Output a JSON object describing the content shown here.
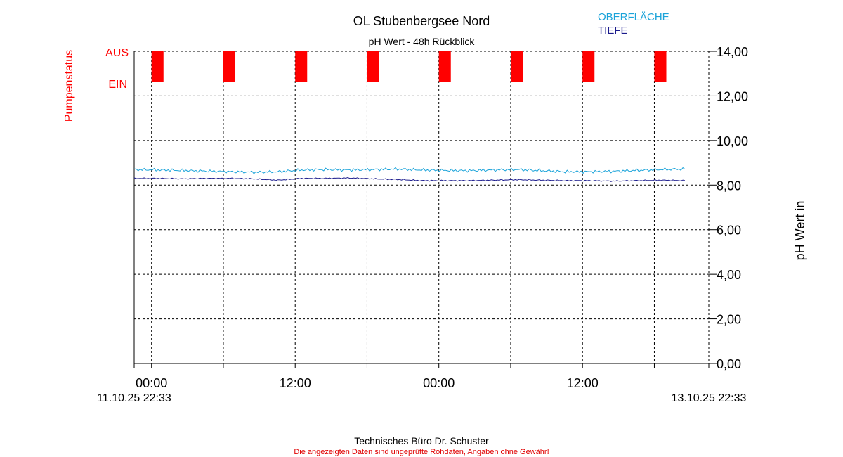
{
  "chart_data": {
    "type": "line",
    "title": "OL Stubenbergsee Nord",
    "subtitle": "pH Wert - 48h Rückblick",
    "ylabel_right": "pH Wert in",
    "ylabel_left": "Pumpenstatus",
    "ylim": [
      0,
      14
    ],
    "yticks": [
      "0,00",
      "2,00",
      "4,00",
      "6,00",
      "8,00",
      "10,00",
      "12,00",
      "14,00"
    ],
    "ytick_values": [
      0,
      2,
      4,
      6,
      8,
      10,
      12,
      14
    ],
    "grid": true,
    "xlim_hours": [
      0,
      48
    ],
    "xtick_labels": [
      {
        "label": "00:00",
        "hour": 1.45
      },
      {
        "label": "12:00",
        "hour": 13.45
      },
      {
        "label": "00:00",
        "hour": 25.45
      },
      {
        "label": "12:00",
        "hour": 37.45
      }
    ],
    "xtick_minor_hours": [
      7.45,
      19.45,
      31.45,
      43.45
    ],
    "x_start_label": "11.10.25 22:33",
    "x_end_label": "13.10.25 22:33",
    "legend_position": "top-right",
    "pump_status": {
      "labels": {
        "on": "EIN",
        "off": "AUS"
      },
      "color": "#ff0000",
      "on_intervals_hours": [
        [
          1.45,
          2.45
        ],
        [
          7.45,
          8.45
        ],
        [
          13.45,
          14.45
        ],
        [
          19.45,
          20.45
        ],
        [
          25.45,
          26.45
        ],
        [
          31.45,
          32.45
        ],
        [
          37.45,
          38.45
        ],
        [
          43.45,
          44.45
        ]
      ]
    },
    "series": [
      {
        "name": "OBERFLÄCHE",
        "color": "#1aa3d9",
        "x_hours": [
          0,
          2,
          4,
          6,
          8,
          10,
          12,
          14,
          16,
          18,
          20,
          22,
          24,
          26,
          28,
          30,
          32,
          34,
          36,
          38,
          40,
          42,
          44,
          46
        ],
        "values": [
          8.7,
          8.68,
          8.66,
          8.63,
          8.6,
          8.58,
          8.6,
          8.68,
          8.7,
          8.68,
          8.7,
          8.72,
          8.68,
          8.66,
          8.65,
          8.68,
          8.7,
          8.65,
          8.6,
          8.6,
          8.62,
          8.66,
          8.7,
          8.72
        ]
      },
      {
        "name": "TIEFE",
        "color": "#1a1a8c",
        "x_hours": [
          0,
          2,
          4,
          6,
          8,
          10,
          12,
          14,
          16,
          18,
          20,
          22,
          24,
          26,
          28,
          30,
          32,
          34,
          36,
          38,
          40,
          42,
          44,
          46
        ],
        "values": [
          8.3,
          8.3,
          8.28,
          8.3,
          8.3,
          8.28,
          8.22,
          8.3,
          8.3,
          8.32,
          8.28,
          8.25,
          8.2,
          8.2,
          8.2,
          8.22,
          8.24,
          8.22,
          8.2,
          8.2,
          8.18,
          8.2,
          8.22,
          8.2
        ]
      }
    ]
  },
  "footer": {
    "company": "Technisches Büro Dr. Schuster",
    "disclaimer": "Die angezeigten Daten sind ungeprüfte Rohdaten, Angaben ohne Gewähr!"
  },
  "colors": {
    "pump": "#ff0000",
    "footer_disclaimer": "#e00000",
    "grid": "#000000"
  }
}
